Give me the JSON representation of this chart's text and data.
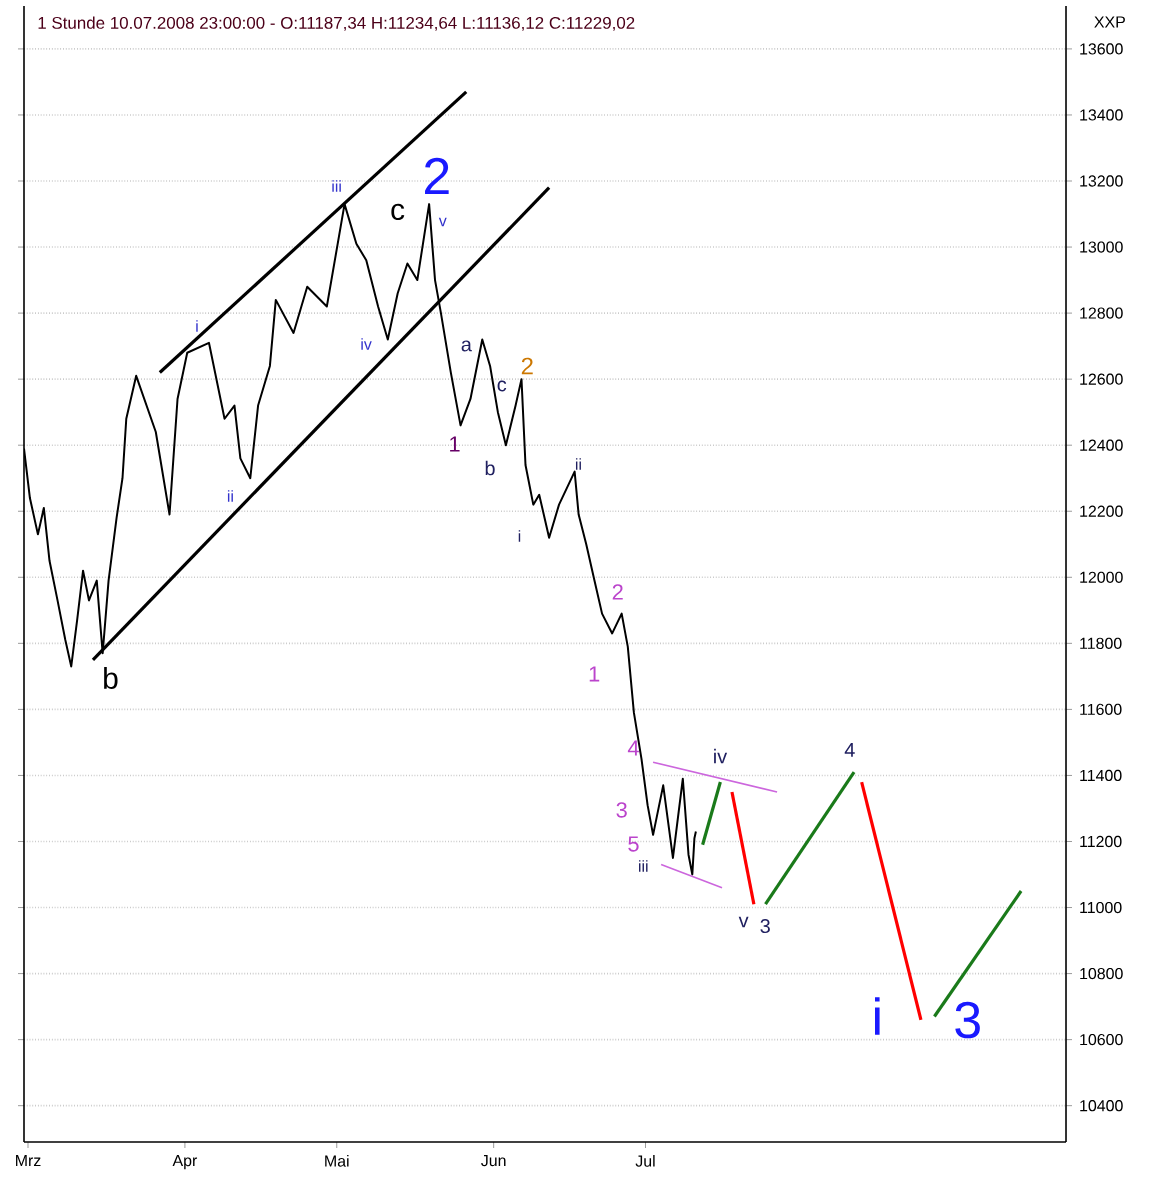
{
  "chart_data": {
    "type": "line",
    "title": "1 Stunde  10.07.2008 23:00:00 - O:11187,34 H:11234,64 L:11136,12 C:11229,02",
    "ylabel": "XXP",
    "xlim": [
      "2008-02-29T05:00",
      "2008-09-22T02:00"
    ],
    "ylim": [
      10290,
      13730
    ],
    "xticks": [
      {
        "value": "2008-03-01",
        "label": "Mrz"
      },
      {
        "value": "2008-04-01",
        "label": "Apr"
      },
      {
        "value": "2008-05-01",
        "label": "Mai"
      },
      {
        "value": "2008-06-01",
        "label": "Jun"
      },
      {
        "value": "2008-07-01",
        "label": "Jul"
      }
    ],
    "yticks": [
      10400,
      10600,
      10800,
      11000,
      11200,
      11400,
      11600,
      11800,
      12000,
      12200,
      12400,
      12600,
      12800,
      13000,
      13200,
      13400,
      13600
    ],
    "grid": "y",
    "marker": "none",
    "line_style": "solid",
    "series": [
      {
        "color": "#000000",
        "x": [
          "2008-02-29T05:00",
          "2008-03-01T09:00",
          "2008-03-02T23:00",
          "2008-03-04T03:00",
          "2008-03-05T06:00",
          "2008-03-06T20:00",
          "2008-03-08T09:00",
          "2008-03-09T13:00",
          "2008-03-10T17:00",
          "2008-03-11T21:00",
          "2008-03-13T01:00",
          "2008-03-14T14:00",
          "2008-03-15T18:00",
          "2008-03-16T22:00",
          "2008-03-18T12:00",
          "2008-03-19T16:00",
          "2008-03-20T10:00",
          "2008-03-22T09:00",
          "2008-03-26T06:00",
          "2008-03-28T23:00",
          "2008-03-30T13:00",
          "2008-04-01T11:00",
          "2008-04-05T18:00",
          "2008-04-08T20:00",
          "2008-04-10T19:00",
          "2008-04-11T23:00",
          "2008-04-13T22:00",
          "2008-04-15T11:00",
          "2008-04-17T19:00",
          "2008-04-18T23:00",
          "2008-04-22T11:00",
          "2008-04-25T04:00",
          "2008-04-29T01:00",
          "2008-05-02T13:00",
          "2008-05-04T21:00",
          "2008-05-06T20:00",
          "2008-05-09T04:00",
          "2008-05-11T02:00",
          "2008-05-13T01:00",
          "2008-05-14T23:00",
          "2008-05-16T22:00",
          "2008-05-19T06:00",
          "2008-05-20T10:00",
          "2008-05-21T14:00",
          "2008-05-23T13:00",
          "2008-05-25T11:00",
          "2008-05-27T10:00",
          "2008-05-29T18:00",
          "2008-05-31T07:00",
          "2008-06-01T20:00",
          "2008-06-03T10:00",
          "2008-06-05T08:00",
          "2008-06-06T12:00",
          "2008-06-07T07:00",
          "2008-06-08T20:00",
          "2008-06-10T00:00",
          "2008-06-11T23:00",
          "2008-06-13T22:00",
          "2008-06-17T00:00",
          "2008-06-17T19:00",
          "2008-06-19T07:00",
          "2008-06-20T22:00",
          "2008-06-22T10:00",
          "2008-06-24T10:00",
          "2008-06-26T07:00",
          "2008-06-27T12:00",
          "2008-06-28T17:00",
          "2008-06-30T05:00",
          "2008-07-01T10:00",
          "2008-07-02T12:00",
          "2008-07-04T12:00",
          "2008-07-06T10:00",
          "2008-07-08T09:00",
          "2008-07-09T12:00",
          "2008-07-10T06:00",
          "2008-07-10T16:00",
          "2008-07-10T23:00"
        ],
        "values": [
          12390,
          12240,
          12130,
          12210,
          12050,
          11930,
          11810,
          11730,
          11870,
          12020,
          11930,
          11990,
          11770,
          11990,
          12180,
          12300,
          12480,
          12610,
          12440,
          12190,
          12540,
          12680,
          12710,
          12480,
          12520,
          12360,
          12300,
          12520,
          12640,
          12840,
          12740,
          12880,
          12820,
          13130,
          13010,
          12960,
          12820,
          12720,
          12860,
          12950,
          12900,
          13130,
          12900,
          12800,
          12620,
          12460,
          12540,
          12720,
          12640,
          12500,
          12400,
          12520,
          12600,
          12340,
          12220,
          12250,
          12120,
          12220,
          12320,
          12190,
          12100,
          11990,
          11890,
          11830,
          11890,
          11790,
          11590,
          11450,
          11310,
          11220,
          11370,
          11150,
          11390,
          11160,
          11100,
          11210,
          11230
        ]
      },
      {
        "color": "#000000",
        "x": [
          "2008-03-27T01:00",
          "2008-05-26T14:00"
        ],
        "values": [
          12620,
          13470
        ]
      },
      {
        "color": "#000000",
        "x": [
          "2008-03-13T20:00",
          "2008-06-11T23:00"
        ],
        "values": [
          11750,
          13180
        ]
      },
      {
        "color": "#cc66dd",
        "x": [
          "2008-07-02T12:00",
          "2008-07-27T00:00"
        ],
        "values": [
          11440,
          11350
        ]
      },
      {
        "color": "#cc66dd",
        "x": [
          "2008-07-04T02:00",
          "2008-07-16T03:00"
        ],
        "values": [
          11130,
          11060
        ]
      },
      {
        "color": "#1a7a1a",
        "x": [
          "2008-07-12T07:00",
          "2008-07-15T19:00"
        ],
        "values": [
          11190,
          11380
        ]
      },
      {
        "color": "#ff0000",
        "x": [
          "2008-07-18T02:00",
          "2008-07-22T10:00"
        ],
        "values": [
          11350,
          11010
        ]
      },
      {
        "color": "#1a7a1a",
        "x": [
          "2008-07-24T17:00",
          "2008-08-11T05:00"
        ],
        "values": [
          11010,
          11410
        ]
      },
      {
        "color": "#ff0000",
        "x": [
          "2008-08-12T17:00",
          "2008-08-24T10:00"
        ],
        "values": [
          11380,
          10660
        ]
      },
      {
        "color": "#1a7a1a",
        "x": [
          "2008-08-27T02:00",
          "2008-09-13T05:00"
        ],
        "values": [
          10670,
          11050
        ]
      }
    ],
    "annotations": [
      "b",
      "i",
      "ii",
      "iii",
      "c",
      "2",
      "v",
      "iv",
      "1",
      "a",
      "c",
      "2",
      "b",
      "ii",
      "i",
      "2",
      "1",
      "4",
      "3",
      "5",
      "iii",
      "iv",
      "v",
      "3",
      "4",
      "i",
      "3"
    ]
  }
}
